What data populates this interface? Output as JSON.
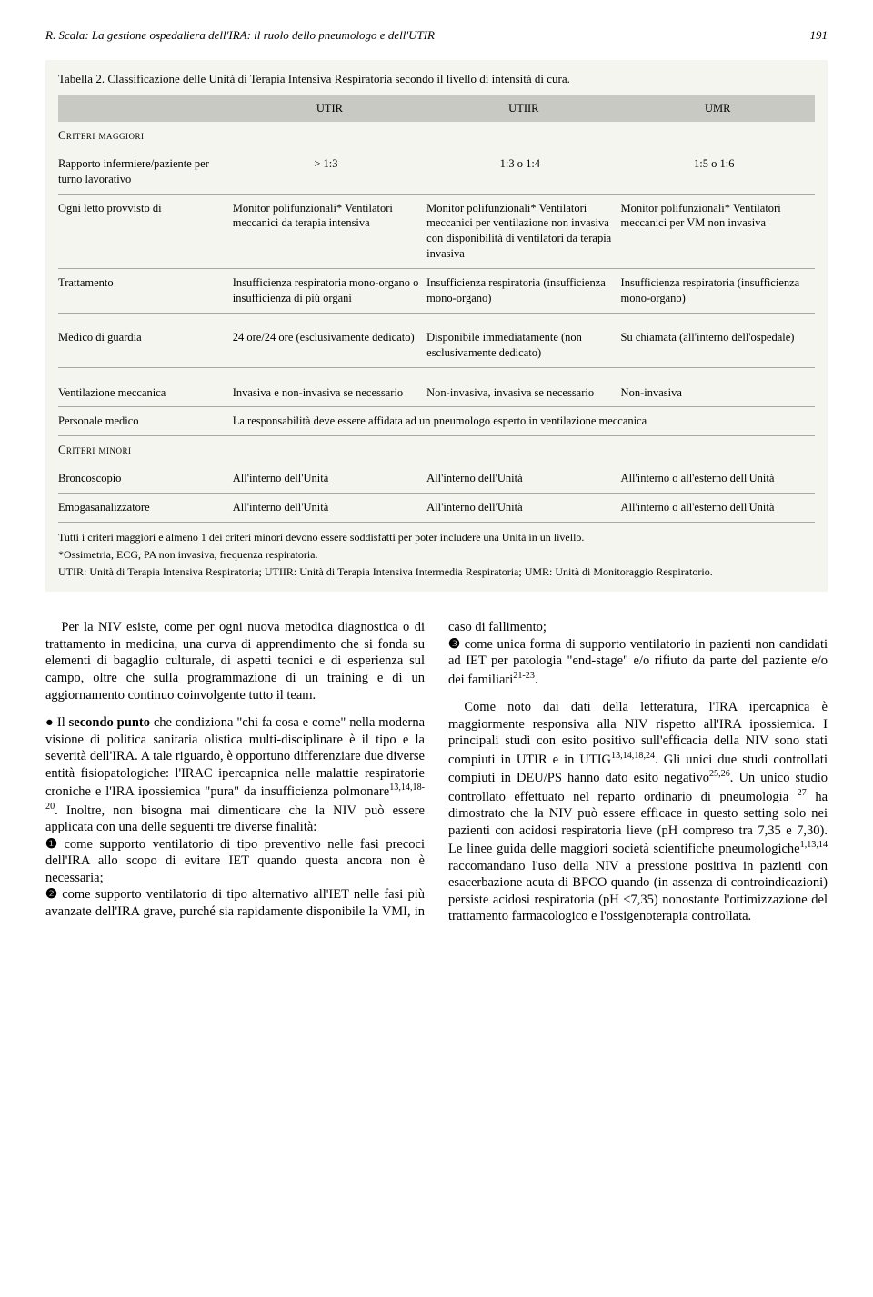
{
  "header": {
    "running_title": "R. Scala: La gestione ospedaliera dell'IRA: il ruolo dello pneumologo e dell'UTIR",
    "page_number": "191"
  },
  "table": {
    "caption": "Tabella 2. Classificazione delle Unità di Terapia Intensiva Respiratoria secondo il livello di intensità di cura.",
    "columns": [
      "UTIR",
      "UTIIR",
      "UMR"
    ],
    "section_major": "Criteri maggiori",
    "section_minor": "Criteri minori",
    "rows": [
      {
        "label": "Rapporto infermiere/paziente per turno lavorativo",
        "c1": "> 1:3",
        "c2": "1:3 o 1:4",
        "c3": "1:5 o 1:6"
      },
      {
        "label": "Ogni letto provvisto di",
        "c1": "Monitor polifunzionali* Ventilatori meccanici da terapia intensiva",
        "c2": "Monitor polifunzionali* Ventilatori meccanici per ventilazione non invasiva con disponibilità di ventilatori da terapia invasiva",
        "c3": "Monitor polifunzionali* Ventilatori meccanici per VM non invasiva"
      },
      {
        "label": "Trattamento",
        "c1": "Insufficienza respiratoria mono-organo o insufficienza di più organi",
        "c2": "Insufficienza respiratoria (insufficienza mono-organo)",
        "c3": "Insufficienza respiratoria (insufficienza mono-organo)"
      },
      {
        "label": "Medico di guardia",
        "c1": "24 ore/24 ore (esclusivamente dedicato)",
        "c2": "Disponibile immediatamente (non esclusivamente dedicato)",
        "c3": "Su chiamata (all'interno dell'ospedale)"
      },
      {
        "label": "Ventilazione meccanica",
        "c1": "Invasiva e non-invasiva se necessario",
        "c2": "Non-invasiva, invasiva se necessario",
        "c3": "Non-invasiva"
      },
      {
        "label": "Personale medico",
        "span": "La responsabilità deve essere affidata ad un pneumologo esperto in ventilazione meccanica"
      },
      {
        "label": "Broncoscopio",
        "c1": "All'interno dell'Unità",
        "c2": "All'interno dell'Unità",
        "c3": "All'interno o all'esterno dell'Unità"
      },
      {
        "label": "Emogasanalizzatore",
        "c1": "All'interno dell'Unità",
        "c2": "All'interno dell'Unità",
        "c3": "All'interno o all'esterno dell'Unità"
      }
    ],
    "footnotes": [
      "Tutti i criteri maggiori e almeno 1 dei criteri minori devono essere soddisfatti per poter includere una Unità in un livello.",
      "*Ossimetria, ECG, PA non invasiva, frequenza respiratoria.",
      "UTIR: Unità di Terapia Intensiva Respiratoria; UTIIR: Unità di Terapia Intensiva Intermedia Respiratoria; UMR: Unità di Monitoraggio Respiratorio."
    ]
  },
  "body": {
    "p1": "Per la NIV esiste, come per ogni nuova metodica diagnostica o di trattamento in medicina, una curva di apprendimento che si fonda su elementi di bagaglio culturale, di aspetti tecnici e di esperienza sul campo, oltre che sulla programmazione di un training e di un aggiornamento continuo coinvolgente tutto il team.",
    "p2a": "● Il ",
    "p2b": "secondo punto",
    "p2c": " che condiziona \"chi fa cosa e come\" nella moderna visione di politica sanitaria olistica multi-disciplinare è il tipo e la severità dell'IRA. A tale riguardo, è opportuno differenziare due diverse entità fisiopatologiche: l'IRAC ipercapnica nelle malattie respiratorie croniche e l'IRA ipossiemica \"pura\" da insufficienza polmonare",
    "p2d": ". Inoltre, non bisogna mai dimenticare che la NIV può essere applicata con una delle seguenti tre diverse finalità:",
    "sup1": "13,14,18-20",
    "li1a": "❶",
    "li1b": " come supporto ventilatorio di tipo preventivo nelle fasi precoci dell'IRA allo scopo di evitare IET quando questa ancora non è necessaria;",
    "li2a": "❷",
    "li2b": " come supporto ventilatorio di tipo alternativo all'IET nelle fasi più avanzate dell'IRA grave, purché sia rapidamente disponibile la VMI, in caso di fallimento;",
    "li3a": "❸",
    "li3b": " come unica forma di supporto ventilatorio in pazienti non candidati ad IET per patologia \"end-stage\" e/o rifiuto da parte del paziente e/o dei familiari",
    "sup2": "21-23",
    "li3c": ".",
    "p3a": "Come noto dai dati della letteratura, l'IRA ipercapnica è maggiormente responsiva alla NIV rispetto all'IRA ipossiemica. I principali studi con esito positivo sull'efficacia della NIV sono stati compiuti in UTIR e in UTIG",
    "sup3": "13,14,18,24",
    "p3b": ". Gli unici due studi controllati compiuti in DEU/PS hanno dato esito negativo",
    "sup4": "25,26",
    "p3c": ". Un unico studio controllato effettuato nel reparto ordinario di pneumologia ",
    "sup5": "27",
    "p3d": " ha dimostrato che la NIV può essere efficace in questo setting solo nei pazienti con acidosi respiratoria lieve (pH compreso tra 7,35 e 7,30). Le linee guida delle maggiori società scientifiche pneumologiche",
    "sup6": "1,13,14",
    "p3e": " raccomandano l'uso della NIV a pressione positiva in pazienti con esacerbazione acuta di BPCO quando (in assenza di controindicazioni) persiste acidosi respiratoria (pH <7,35) nonostante l'ottimizzazione del trattamento farmacologico e l'ossigenoterapia controllata."
  }
}
